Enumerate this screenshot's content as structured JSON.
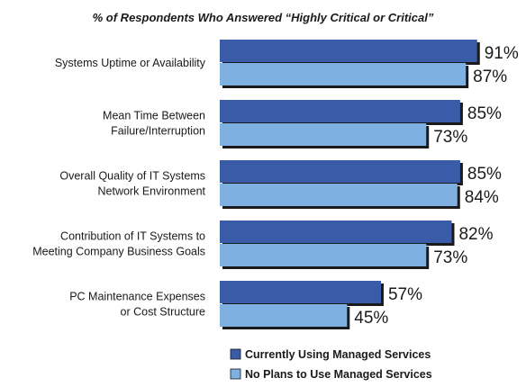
{
  "chart_data": {
    "type": "bar",
    "orientation": "horizontal",
    "title": "% of Respondents Who Answered “Highly Critical or Critical”",
    "categories": [
      [
        "Systems Uptime or Availability"
      ],
      [
        "Mean Time Between",
        "Failure/Interruption"
      ],
      [
        "Overall Quality of IT Systems",
        "Network Environment"
      ],
      [
        "Contribution of IT Systems to",
        "Meeting Company Business Goals"
      ],
      [
        "PC Maintenance Expenses",
        "or Cost Structure"
      ]
    ],
    "series": [
      {
        "name": "Currently Using Managed Services",
        "values": [
          91,
          85,
          85,
          82,
          57
        ],
        "labels": [
          "91%",
          "85%",
          "85%",
          "82%",
          "57%"
        ],
        "color": "#3a5ca8"
      },
      {
        "name": "No Plans to Use Managed Services",
        "values": [
          87,
          73,
          84,
          73,
          45
        ],
        "labels": [
          "87%",
          "73%",
          "84%",
          "73%",
          "45%"
        ],
        "color": "#7eb0e2"
      }
    ],
    "xlim": [
      0,
      100
    ],
    "grid": false,
    "legend": "bottom-center"
  }
}
